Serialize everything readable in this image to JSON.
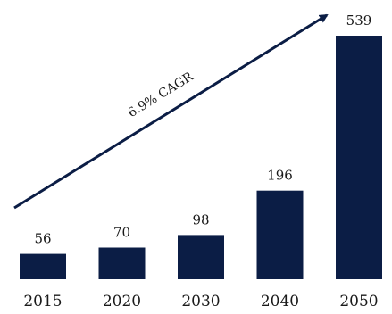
{
  "chart_data": {
    "type": "bar",
    "categories": [
      "2015",
      "2020",
      "2030",
      "2040",
      "2050"
    ],
    "values": [
      56,
      70,
      98,
      196,
      539
    ],
    "title": "",
    "xlabel": "",
    "ylabel": "",
    "ylim": [
      0,
      539
    ],
    "grid": false,
    "legend": "none",
    "annotation": "6.9% CAGR",
    "bar_color": "#0b1d45",
    "arrow_color": "#0b1d45"
  }
}
